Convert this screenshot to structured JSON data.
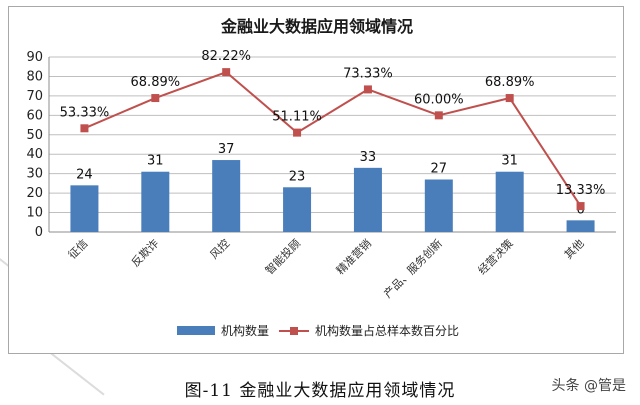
{
  "chart_data": {
    "type": "bar",
    "title": "金融业大数据应用领域情况",
    "categories": [
      "征信",
      "反欺诈",
      "风控",
      "智能投顾",
      "精准营销",
      "产品、服务创新",
      "经营决策",
      "其他"
    ],
    "series": [
      {
        "name": "机构数量",
        "kind": "bar",
        "axis": "left",
        "color": "#4a7ebb",
        "values": [
          24,
          31,
          37,
          23,
          33,
          27,
          31,
          6
        ]
      },
      {
        "name": "机构数量占总样本数百分比",
        "kind": "line",
        "color": "#c0504d",
        "marker": "square",
        "values": [
          53.33,
          68.89,
          82.22,
          51.11,
          73.33,
          60.0,
          68.89,
          13.33
        ],
        "labels": [
          "53.33%",
          "68.89%",
          "82.22%",
          "51.11%",
          "73.33%",
          "60.00%",
          "68.89%",
          "13.33%"
        ]
      }
    ],
    "ylim": [
      0,
      90
    ],
    "yticks": [
      0,
      10,
      20,
      30,
      40,
      50,
      60,
      70,
      80,
      90
    ],
    "grid": true,
    "legend": "bottom",
    "xlabel": "",
    "ylabel": ""
  },
  "caption": "图-11 金融业大数据应用领域情况",
  "watermark": "头条 @管是"
}
